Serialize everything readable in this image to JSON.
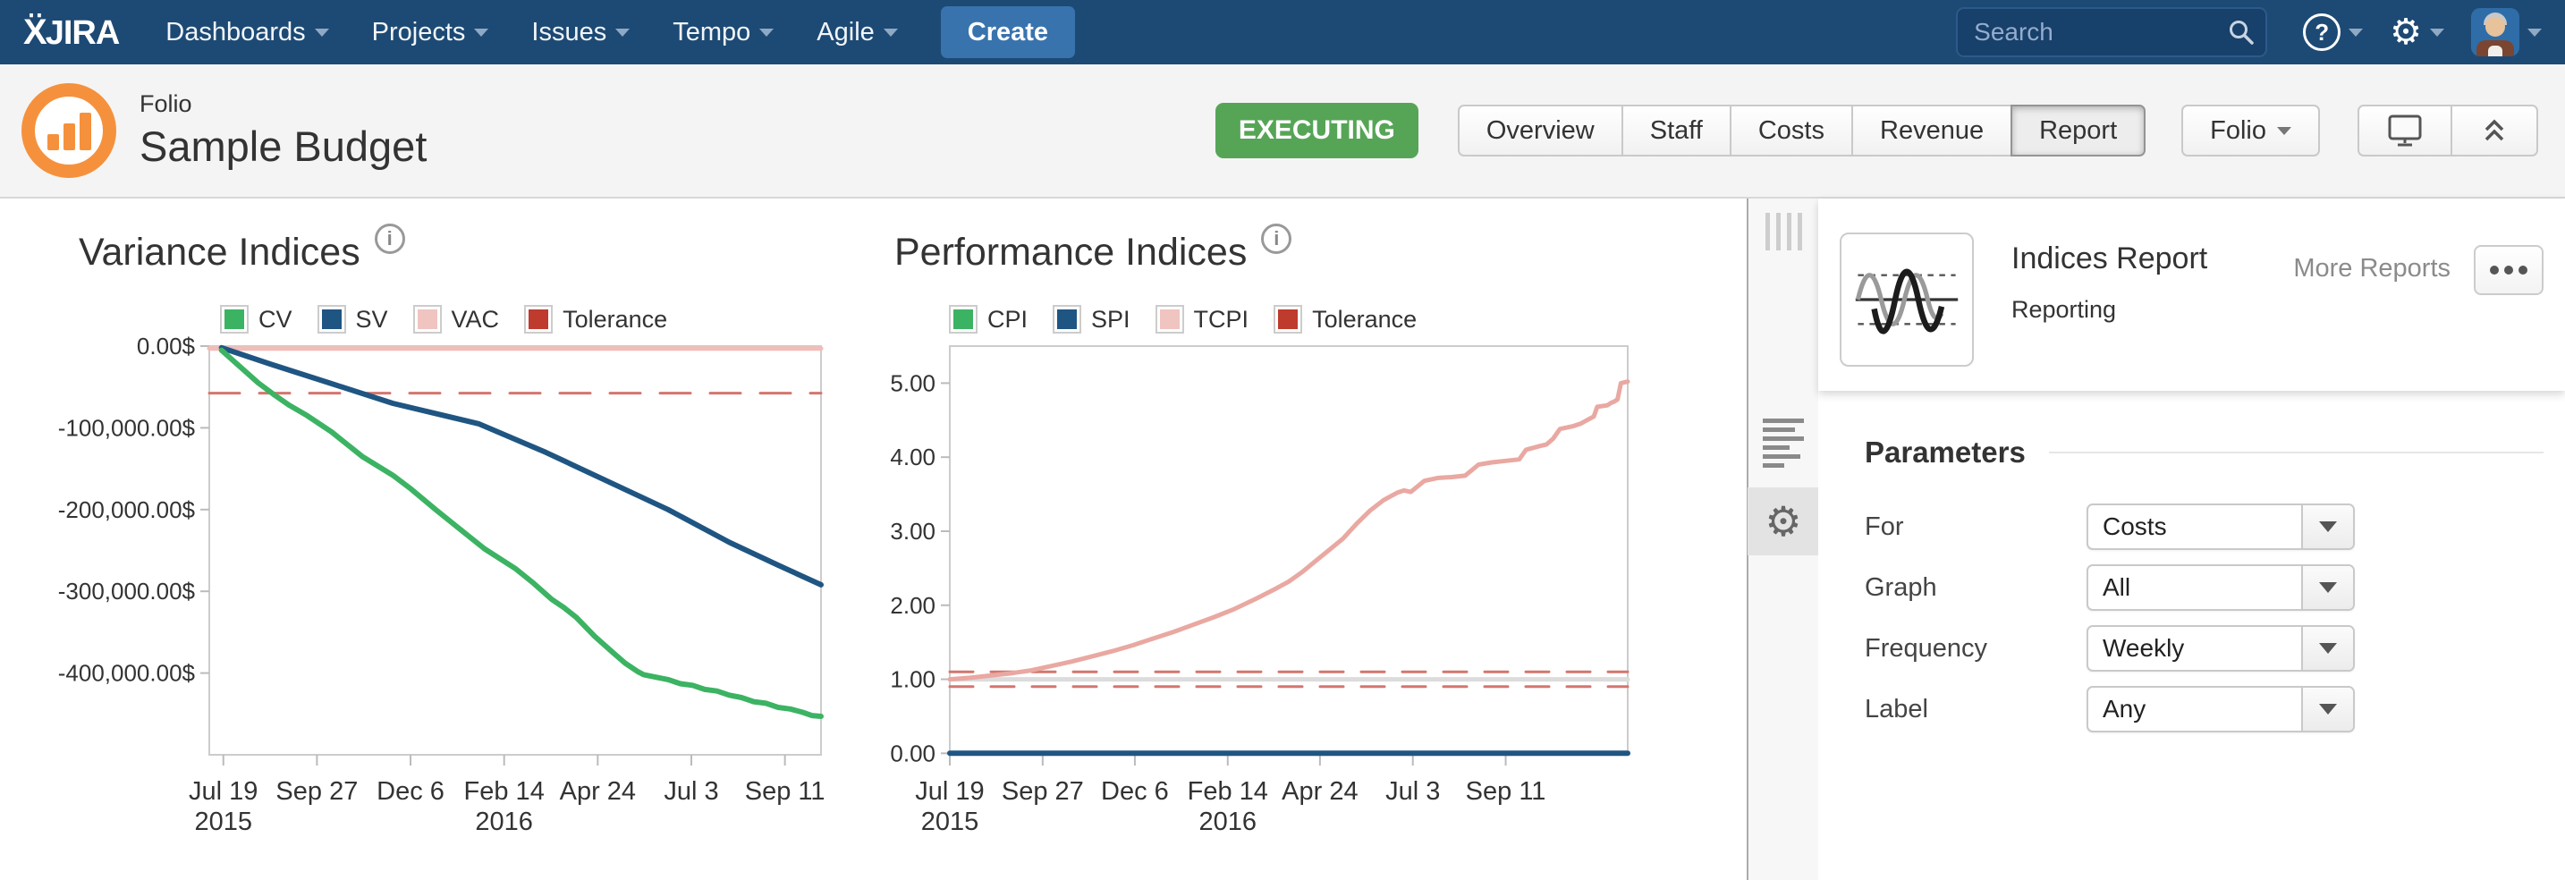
{
  "nav": {
    "logo_mark": "Ẍ",
    "logo_word": "JIRA",
    "items": [
      "Dashboards",
      "Projects",
      "Issues",
      "Tempo",
      "Agile"
    ],
    "create_label": "Create",
    "search_placeholder": "Search",
    "help_glyph": "?",
    "gear_glyph": "⚙"
  },
  "header": {
    "app": "Folio",
    "title": "Sample Budget",
    "status": "EXECUTING",
    "tabs": [
      "Overview",
      "Staff",
      "Costs",
      "Revenue",
      "Report"
    ],
    "active_tab": "Report",
    "folio_menu_label": "Folio"
  },
  "report_panel": {
    "title": "Indices Report",
    "subtitle": "Reporting",
    "more_reports_label": "More Reports",
    "params_heading": "Parameters",
    "params": [
      {
        "label": "For",
        "value": "Costs"
      },
      {
        "label": "Graph",
        "value": "All"
      },
      {
        "label": "Frequency",
        "value": "Weekly"
      },
      {
        "label": "Label",
        "value": "Any"
      }
    ]
  },
  "tool_strip": {
    "gear_glyph": "⚙"
  },
  "chart_data": [
    {
      "type": "line",
      "title": "Variance Indices",
      "ylabel": "",
      "ylim": [
        -500000,
        0
      ],
      "grid": false,
      "legend_position": "top",
      "yticks": [
        {
          "v": 0,
          "label": "0.00$"
        },
        {
          "v": -100000,
          "label": "-100,000.00$"
        },
        {
          "v": -200000,
          "label": "-200,000.00$"
        },
        {
          "v": -300000,
          "label": "-300,000.00$"
        },
        {
          "v": -400000,
          "label": "-400,000.00$"
        }
      ],
      "xticks": [
        {
          "f": 0.023,
          "label": "Jul 19",
          "sub": "2015"
        },
        {
          "f": 0.176,
          "label": "Sep 27"
        },
        {
          "f": 0.329,
          "label": "Dec 6"
        },
        {
          "f": 0.482,
          "label": "Feb 14",
          "sub": "2016"
        },
        {
          "f": 0.635,
          "label": "Apr 24"
        },
        {
          "f": 0.788,
          "label": "Jul 3"
        },
        {
          "f": 0.941,
          "label": "Sep 11"
        }
      ],
      "legend": [
        {
          "name": "CV",
          "color": "#3cb363"
        },
        {
          "name": "SV",
          "color": "#1f5582"
        },
        {
          "name": "VAC",
          "color": "#f0c4c0"
        },
        {
          "name": "Tolerance",
          "color": "#bf3b2e"
        }
      ],
      "series": [
        {
          "name": "VAC",
          "color": "#f2bcb8",
          "width": 5,
          "points": [
            [
              0.0,
              -3000
            ],
            [
              1.0,
              -3000
            ]
          ]
        },
        {
          "name": "Tolerance",
          "color": "#d3766e",
          "width": 3,
          "dash": "34,22",
          "points": [
            [
              0.0,
              -57500
            ],
            [
              1.0,
              -57500
            ]
          ]
        },
        {
          "name": "SV",
          "color": "#1f5582",
          "width": 6,
          "points": [
            [
              0.02,
              -2000
            ],
            [
              0.1,
              -22000
            ],
            [
              0.2,
              -46000
            ],
            [
              0.3,
              -70000
            ],
            [
              0.44,
              -95000
            ],
            [
              0.55,
              -130000
            ],
            [
              0.65,
              -165000
            ],
            [
              0.75,
              -200000
            ],
            [
              0.85,
              -240000
            ],
            [
              0.93,
              -268000
            ],
            [
              1.0,
              -292000
            ]
          ]
        },
        {
          "name": "CV",
          "color": "#3cb363",
          "width": 6,
          "points": [
            [
              0.02,
              -5000
            ],
            [
              0.05,
              -25000
            ],
            [
              0.08,
              -45000
            ],
            [
              0.105,
              -59000
            ],
            [
              0.13,
              -72000
            ],
            [
              0.16,
              -85000
            ],
            [
              0.2,
              -105000
            ],
            [
              0.25,
              -135000
            ],
            [
              0.3,
              -158000
            ],
            [
              0.33,
              -175000
            ],
            [
              0.37,
              -200000
            ],
            [
              0.4,
              -218000
            ],
            [
              0.45,
              -248000
            ],
            [
              0.5,
              -272000
            ],
            [
              0.53,
              -290000
            ],
            [
              0.56,
              -310000
            ],
            [
              0.58,
              -320000
            ],
            [
              0.6,
              -332000
            ],
            [
              0.63,
              -355000
            ],
            [
              0.66,
              -375000
            ],
            [
              0.68,
              -388000
            ],
            [
              0.7,
              -398000
            ],
            [
              0.71,
              -402000
            ],
            [
              0.73,
              -405000
            ],
            [
              0.75,
              -408000
            ],
            [
              0.77,
              -413000
            ],
            [
              0.79,
              -415000
            ],
            [
              0.81,
              -420000
            ],
            [
              0.83,
              -422000
            ],
            [
              0.85,
              -427000
            ],
            [
              0.87,
              -430000
            ],
            [
              0.89,
              -435000
            ],
            [
              0.91,
              -437000
            ],
            [
              0.93,
              -442000
            ],
            [
              0.95,
              -444000
            ],
            [
              0.97,
              -448000
            ],
            [
              0.985,
              -452000
            ],
            [
              1.0,
              -453000
            ]
          ]
        }
      ]
    },
    {
      "type": "line",
      "title": "Performance Indices",
      "ylabel": "",
      "ylim": [
        -0.02,
        5.5
      ],
      "grid": false,
      "legend_position": "top",
      "yticks": [
        {
          "v": 5.0,
          "label": "5.00"
        },
        {
          "v": 4.0,
          "label": "4.00"
        },
        {
          "v": 3.0,
          "label": "3.00"
        },
        {
          "v": 2.0,
          "label": "2.00"
        },
        {
          "v": 1.0,
          "label": "1.00"
        },
        {
          "v": 0.0,
          "label": "0.00"
        }
      ],
      "xticks": [
        {
          "f": 0.0,
          "label": "Jul 19",
          "sub": "2015"
        },
        {
          "f": 0.137,
          "label": "Sep 27"
        },
        {
          "f": 0.273,
          "label": "Dec 6"
        },
        {
          "f": 0.41,
          "label": "Feb 14",
          "sub": "2016"
        },
        {
          "f": 0.546,
          "label": "Apr 24"
        },
        {
          "f": 0.683,
          "label": "Jul 3"
        },
        {
          "f": 0.82,
          "label": "Sep 11"
        }
      ],
      "legend": [
        {
          "name": "CPI",
          "color": "#3cb363"
        },
        {
          "name": "SPI",
          "color": "#1f5582"
        },
        {
          "name": "TCPI",
          "color": "#f0c4c0"
        },
        {
          "name": "Tolerance",
          "color": "#bf3b2e"
        }
      ],
      "series": [
        {
          "name": "baseline",
          "color": "#dcdcdc",
          "width": 5,
          "points": [
            [
              0.0,
              1.0
            ],
            [
              1.0,
              1.0
            ]
          ]
        },
        {
          "name": "Tolerance-high",
          "color": "#d3766e",
          "width": 3,
          "dash": "26,20",
          "points": [
            [
              0.0,
              1.1
            ],
            [
              1.0,
              1.1
            ]
          ]
        },
        {
          "name": "Tolerance-low",
          "color": "#d3766e",
          "width": 3,
          "dash": "26,20",
          "points": [
            [
              0.0,
              0.9
            ],
            [
              1.0,
              0.9
            ]
          ]
        },
        {
          "name": "CPI",
          "color": "#3cb363",
          "width": 5,
          "points": [
            [
              0.0,
              0.0
            ],
            [
              1.0,
              0.0
            ]
          ]
        },
        {
          "name": "SPI",
          "color": "#1f5582",
          "width": 6,
          "points": [
            [
              0.0,
              0.0
            ],
            [
              1.0,
              0.0
            ]
          ]
        },
        {
          "name": "TCPI",
          "color": "#e9a8a1",
          "width": 5,
          "points": [
            [
              0.0,
              1.0
            ],
            [
              0.03,
              1.02
            ],
            [
              0.06,
              1.05
            ],
            [
              0.09,
              1.08
            ],
            [
              0.12,
              1.12
            ],
            [
              0.15,
              1.18
            ],
            [
              0.18,
              1.24
            ],
            [
              0.21,
              1.31
            ],
            [
              0.24,
              1.38
            ],
            [
              0.27,
              1.46
            ],
            [
              0.3,
              1.55
            ],
            [
              0.33,
              1.64
            ],
            [
              0.36,
              1.74
            ],
            [
              0.39,
              1.84
            ],
            [
              0.42,
              1.95
            ],
            [
              0.45,
              2.08
            ],
            [
              0.48,
              2.22
            ],
            [
              0.5,
              2.32
            ],
            [
              0.52,
              2.45
            ],
            [
              0.54,
              2.6
            ],
            [
              0.56,
              2.75
            ],
            [
              0.58,
              2.9
            ],
            [
              0.6,
              3.1
            ],
            [
              0.62,
              3.28
            ],
            [
              0.64,
              3.42
            ],
            [
              0.66,
              3.52
            ],
            [
              0.67,
              3.55
            ],
            [
              0.68,
              3.53
            ],
            [
              0.7,
              3.68
            ],
            [
              0.72,
              3.72
            ],
            [
              0.74,
              3.73
            ],
            [
              0.76,
              3.75
            ],
            [
              0.78,
              3.9
            ],
            [
              0.8,
              3.93
            ],
            [
              0.82,
              3.95
            ],
            [
              0.84,
              3.97
            ],
            [
              0.85,
              4.1
            ],
            [
              0.87,
              4.15
            ],
            [
              0.88,
              4.17
            ],
            [
              0.89,
              4.25
            ],
            [
              0.9,
              4.38
            ],
            [
              0.92,
              4.42
            ],
            [
              0.93,
              4.45
            ],
            [
              0.94,
              4.5
            ],
            [
              0.95,
              4.55
            ],
            [
              0.955,
              4.68
            ],
            [
              0.97,
              4.7
            ],
            [
              0.975,
              4.73
            ],
            [
              0.98,
              4.75
            ],
            [
              0.985,
              4.78
            ],
            [
              0.99,
              5.0
            ],
            [
              1.0,
              5.02
            ]
          ]
        }
      ]
    }
  ]
}
